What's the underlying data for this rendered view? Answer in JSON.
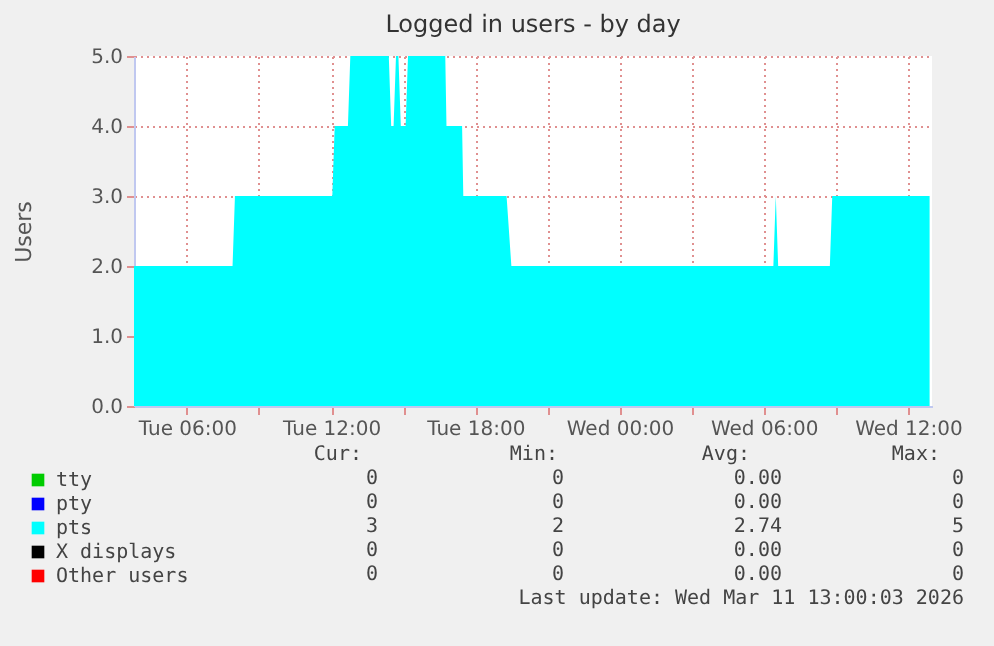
{
  "chart_data": {
    "type": "area",
    "title": "Logged in users - by day",
    "ylabel": "Users",
    "x": [
      "2026-03-10T03:48",
      "2026-03-10T07:54",
      "2026-03-10T08:00",
      "2026-03-10T12:03",
      "2026-03-10T12:09",
      "2026-03-10T12:42",
      "2026-03-10T12:48",
      "2026-03-10T14:24",
      "2026-03-10T14:30",
      "2026-03-10T14:36",
      "2026-03-10T14:42",
      "2026-03-10T14:48",
      "2026-03-10T14:54",
      "2026-03-10T15:06",
      "2026-03-10T15:12",
      "2026-03-10T16:45",
      "2026-03-10T16:48",
      "2026-03-10T17:27",
      "2026-03-10T17:30",
      "2026-03-10T19:18",
      "2026-03-10T19:30",
      "2026-03-11T06:24",
      "2026-03-11T06:30",
      "2026-03-11T06:36",
      "2026-03-11T08:45",
      "2026-03-11T08:51",
      "2026-03-11T12:54"
    ],
    "series": [
      {
        "name": "tty",
        "color": "#00cc00",
        "values": [
          null,
          null,
          null,
          null,
          null,
          null,
          null,
          null,
          null,
          null,
          null,
          null,
          null,
          null,
          null,
          null,
          null,
          null,
          null,
          null,
          null,
          null,
          null,
          null,
          null,
          null,
          null
        ]
      },
      {
        "name": "pty",
        "color": "#0000ff",
        "values": [
          null,
          null,
          null,
          null,
          null,
          null,
          null,
          null,
          null,
          null,
          null,
          null,
          null,
          null,
          null,
          null,
          null,
          null,
          null,
          null,
          null,
          null,
          null,
          null,
          null,
          null,
          null
        ]
      },
      {
        "name": "pts",
        "color": "#00ffff",
        "values": [
          2,
          2,
          3,
          3,
          4,
          4,
          5,
          5,
          4,
          4,
          5,
          5,
          4,
          4,
          5,
          5,
          4,
          4,
          3,
          3,
          2,
          2,
          3,
          2,
          2,
          3,
          3
        ]
      },
      {
        "name": "X displays",
        "color": "#000000",
        "values": [
          null,
          null,
          null,
          null,
          null,
          null,
          null,
          null,
          null,
          null,
          null,
          null,
          null,
          null,
          null,
          null,
          null,
          null,
          null,
          null,
          null,
          null,
          null,
          null,
          null,
          null,
          null
        ]
      },
      {
        "name": "Other users",
        "color": "#ff0000",
        "values": [
          null,
          null,
          null,
          null,
          null,
          null,
          null,
          null,
          null,
          null,
          null,
          null,
          null,
          null,
          null,
          null,
          null,
          null,
          null,
          null,
          null,
          null,
          null,
          null,
          null,
          null,
          null
        ]
      }
    ],
    "xlim": [
      "2026-03-10T03:48",
      "2026-03-11T13:00"
    ],
    "ylim": [
      0,
      5
    ],
    "xticks": [
      {
        "value": "2026-03-10T06:00",
        "label": "Tue 06:00"
      },
      {
        "value": "2026-03-10T09:00",
        "label": null
      },
      {
        "value": "2026-03-10T12:00",
        "label": "Tue 12:00"
      },
      {
        "value": "2026-03-10T15:00",
        "label": null
      },
      {
        "value": "2026-03-10T18:00",
        "label": "Tue 18:00"
      },
      {
        "value": "2026-03-10T21:00",
        "label": null
      },
      {
        "value": "2026-03-11T00:00",
        "label": "Wed 00:00"
      },
      {
        "value": "2026-03-11T03:00",
        "label": null
      },
      {
        "value": "2026-03-11T06:00",
        "label": "Wed 06:00"
      },
      {
        "value": "2026-03-11T09:00",
        "label": null
      },
      {
        "value": "2026-03-11T12:00",
        "label": "Wed 12:00"
      }
    ],
    "yticks": [
      {
        "value": 0,
        "label": "0.0"
      },
      {
        "value": 1,
        "label": "1.0"
      },
      {
        "value": 2,
        "label": "2.0"
      },
      {
        "value": 3,
        "label": "3.0"
      },
      {
        "value": 4,
        "label": "4.0"
      },
      {
        "value": 5,
        "label": "5.0"
      }
    ],
    "grid": true,
    "legend": "bottom left",
    "annotations": [
      "Cur:",
      "Min:",
      "Avg:",
      "Max:",
      "0",
      "0",
      "0.00",
      "0",
      "0",
      "0",
      "0.00",
      "0",
      "3",
      "2",
      "2.74",
      "5",
      "0",
      "0",
      "0.00",
      "0",
      "0",
      "0",
      "0.00",
      "0",
      "Last update: Wed Mar 11 13:00:03 2026"
    ]
  }
}
